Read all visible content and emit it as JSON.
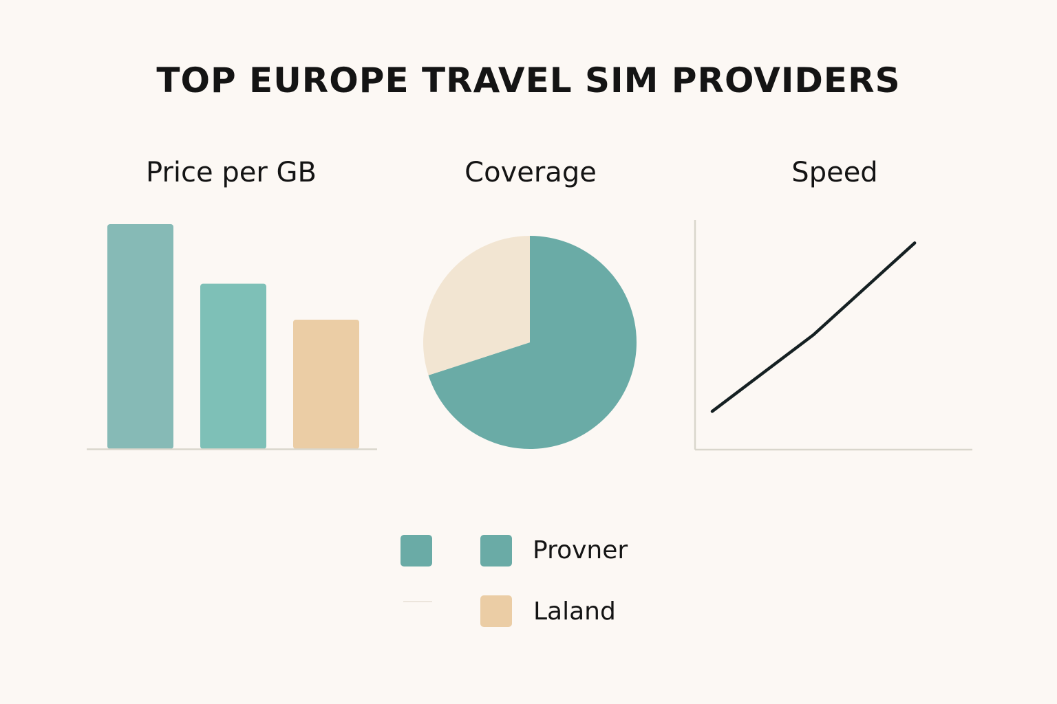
{
  "title": "TOP EUROPE TRAVEL SIM PROVIDERS",
  "colors": {
    "background": "#fcf8f4",
    "teal_dark": "#6aaba6",
    "teal_light": "#7ec0b7",
    "sand": "#ebcda5",
    "cream": "#f2e5d2",
    "axis": "#d9d6cc",
    "line": "#152022"
  },
  "chart_data": [
    {
      "type": "bar",
      "title": "Price per GB",
      "categories": [
        "",
        "",
        ""
      ],
      "values": [
        100,
        73.5,
        57.5
      ],
      "colors": [
        "#86bab6",
        "#7ec0b7",
        "#ebcda5"
      ],
      "ylim": [
        0,
        100
      ],
      "xlabel": "",
      "ylabel": ""
    },
    {
      "type": "pie",
      "title": "Coverage",
      "slices": [
        {
          "label": "Provner",
          "value": 70,
          "color": "#6aaba6"
        },
        {
          "label": "Laland",
          "value": 30,
          "color": "#f2e5d2"
        }
      ]
    },
    {
      "type": "line",
      "title": "Speed",
      "x": [
        0,
        1,
        2
      ],
      "y": [
        1,
        3,
        5.4
      ],
      "xlim": [
        -0.17,
        2.57
      ],
      "ylim": [
        0,
        6
      ]
    }
  ],
  "legend": {
    "items": [
      {
        "label": "Provner",
        "color": "#6aaba6"
      },
      {
        "label": "Laland",
        "color": "#ebcda5"
      }
    ]
  }
}
